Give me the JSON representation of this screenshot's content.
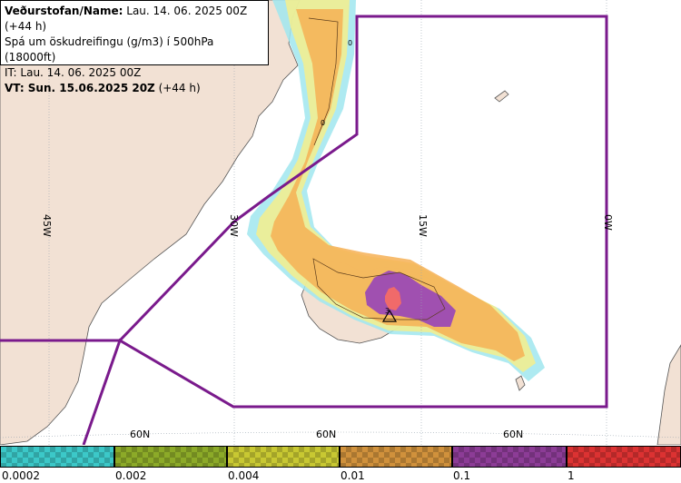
{
  "info": {
    "line1_bold": "Veðurstofan/Name:",
    "line1_rest": " Lau. 14. 06. 2025 00Z (+44 h)",
    "line2": "Spá um öskudreifingu (g/m3) í 500hPa (18000ft)",
    "line3": "IT: Lau. 14. 06. 2025 00Z",
    "line4_bold": "VT: Sun. 15.06.2025 20Z",
    "line4_rest": " (+44 h)"
  },
  "graticule": {
    "lon_labels": [
      "45W",
      "30W",
      "15W",
      "0W"
    ],
    "lat_labels": [
      "60N",
      "60N",
      "60N"
    ]
  },
  "contour_labels": [
    "0",
    "0",
    "3"
  ],
  "legend": {
    "colors": [
      "#3cc8c8",
      "#8caa28",
      "#c8c832",
      "#d0913c",
      "#8c3c96",
      "#dc3232"
    ],
    "tick_labels": [
      "0.0002",
      "0.002",
      "0.004",
      "0.01",
      "0.1",
      "1"
    ]
  },
  "map_colors": {
    "sea": "#ffffff",
    "land": "#f2e1d4",
    "coast": "#555555",
    "region_border": "#7a1a8c",
    "ash_orange": "#f6b055",
    "ash_yellow": "#f5ef8c",
    "ash_cyan": "#a0e6ee",
    "ash_purple": "#a050b0",
    "ash_red": "#f06a6a"
  }
}
